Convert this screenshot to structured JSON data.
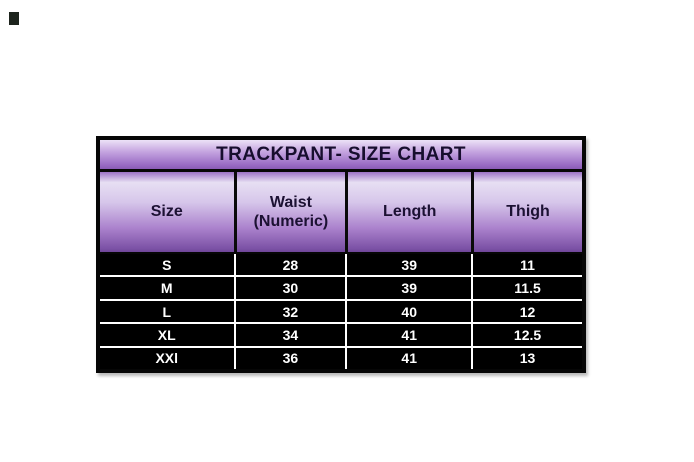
{
  "size_chart": {
    "title": "TRACKPANT- SIZE CHART",
    "columns": [
      {
        "label": "Size"
      },
      {
        "label": "Waist\n(Numeric)"
      },
      {
        "label": "Length"
      },
      {
        "label": "Thigh"
      }
    ],
    "rows": [
      {
        "cells": [
          "S",
          "28",
          "39",
          "11"
        ]
      },
      {
        "cells": [
          "M",
          "30",
          "39",
          "11.5"
        ]
      },
      {
        "cells": [
          "L",
          "32",
          "40",
          "12"
        ]
      },
      {
        "cells": [
          "XL",
          "34",
          "41",
          "12.5"
        ]
      },
      {
        "cells": [
          "XXl",
          "36",
          "41",
          "13"
        ]
      }
    ],
    "colors": {
      "title_text": "#170e2e",
      "header_text": "#1c1133",
      "purple_light": "#e7dff3",
      "purple_mid": "#ab82cd",
      "purple_dark": "#7b51a5",
      "table_border": "#060606",
      "data_background": "#000000",
      "data_text": "#ffffff",
      "divider": "#ffffff"
    }
  },
  "chart_data": {
    "type": "table",
    "title": "TRACKPANT- SIZE CHART",
    "columns": [
      "Size",
      "Waist (Numeric)",
      "Length",
      "Thigh"
    ],
    "rows": [
      [
        "S",
        28,
        39,
        11
      ],
      [
        "M",
        30,
        39,
        11.5
      ],
      [
        "L",
        32,
        40,
        12
      ],
      [
        "XL",
        34,
        41,
        12.5
      ],
      [
        "XXl",
        36,
        41,
        13
      ]
    ],
    "layout": "black data rows with white dividers, glossy purple gradient title and header bands, thick black outer border on white background"
  }
}
